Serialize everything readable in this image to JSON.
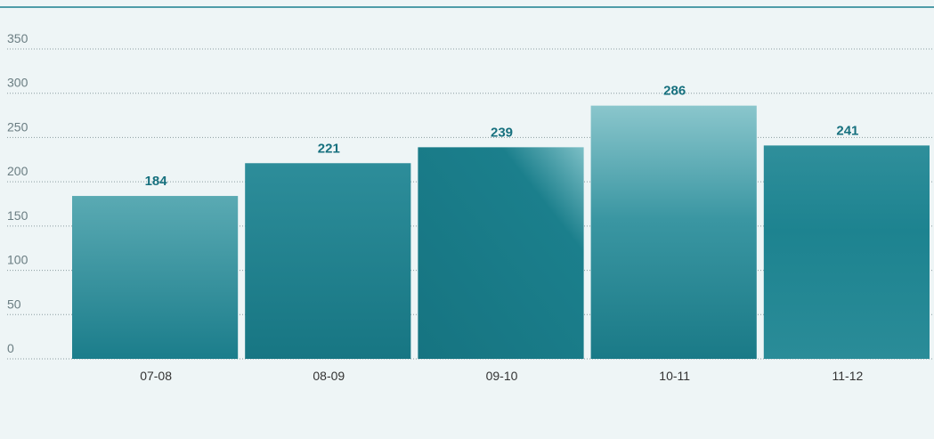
{
  "chart_data": {
    "type": "bar",
    "categories": [
      "07-08",
      "08-09",
      "09-10",
      "10-11",
      "11-12"
    ],
    "values": [
      184,
      221,
      239,
      286,
      241
    ],
    "color": "#1a7f8e",
    "ylim": [
      0,
      350
    ],
    "yticks": [
      0,
      50,
      100,
      150,
      200,
      250,
      300,
      350
    ],
    "grid": true
  }
}
